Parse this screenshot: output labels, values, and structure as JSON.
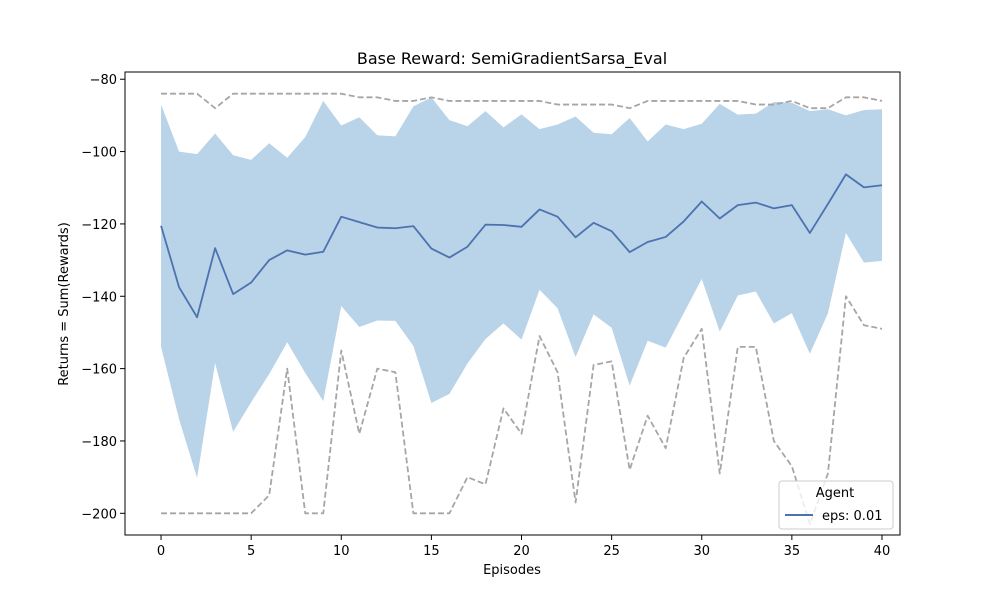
{
  "chart_data": {
    "type": "line",
    "title": "Base Reward: SemiGradientSarsa_Eval",
    "xlabel": "Episodes",
    "ylabel": "Returns = Sum(Rewards)",
    "xlim": [
      -2,
      41
    ],
    "ylim": [
      -206,
      -78
    ],
    "xticks": [
      0,
      5,
      10,
      15,
      20,
      25,
      30,
      35,
      40
    ],
    "yticks": [
      -200,
      -180,
      -160,
      -140,
      -120,
      -100,
      -80
    ],
    "grid": false,
    "legend": {
      "title": "Agent",
      "placement": "bottom-right"
    },
    "x": [
      0,
      1,
      2,
      3,
      4,
      5,
      6,
      7,
      8,
      9,
      10,
      11,
      12,
      13,
      14,
      15,
      16,
      17,
      18,
      19,
      20,
      21,
      22,
      23,
      24,
      25,
      26,
      27,
      28,
      29,
      30,
      31,
      32,
      33,
      34,
      35,
      36,
      37,
      38,
      39,
      40
    ],
    "series": [
      {
        "name": "eps: 0.01",
        "color": "#4c72b0",
        "mean": [
          -120.5,
          -137.5,
          -145.8,
          -126.7,
          -139.4,
          -136.2,
          -130,
          -127.3,
          -128.5,
          -127.7,
          -118,
          -119.5,
          -121,
          -121.2,
          -120.6,
          -126.8,
          -129.3,
          -126.3,
          -120.2,
          -120.3,
          -120.8,
          -116,
          -118,
          -123.7,
          -119.7,
          -122,
          -127.8,
          -125,
          -123.6,
          -119.3,
          -113.8,
          -118.5,
          -114.8,
          -114.1,
          -115.7,
          -114.8,
          -122.5,
          -114.5,
          -106.3,
          -109.9,
          -109.3
        ],
        "band_upper": [
          -87,
          -100,
          -100.7,
          -95,
          -101,
          -102.3,
          -97.7,
          -101.7,
          -96,
          -86,
          -92.8,
          -90.5,
          -95.5,
          -95.8,
          -87.5,
          -85,
          -91.3,
          -93,
          -88.8,
          -93.3,
          -89.7,
          -93.8,
          -92.5,
          -90.3,
          -94.8,
          -95.2,
          -90.7,
          -97.2,
          -92.5,
          -93.8,
          -92.3,
          -86.8,
          -89.8,
          -89.5,
          -86.3,
          -86.5,
          -88.8,
          -88.3,
          -90,
          -88.5,
          -88.3
        ],
        "band_lower": [
          -154,
          -174,
          -190.2,
          -158.5,
          -177.5,
          -169.3,
          -161.5,
          -152.7,
          -161.2,
          -169,
          -142.7,
          -148.5,
          -146.7,
          -146.8,
          -153.7,
          -169.5,
          -167,
          -158.6,
          -151.8,
          -147.5,
          -152,
          -138.2,
          -143.3,
          -156.8,
          -145,
          -148.7,
          -164.7,
          -152.3,
          -154.2,
          -144.7,
          -135.2,
          -149.8,
          -139.8,
          -138.7,
          -147.5,
          -144.7,
          -155.9,
          -144.7,
          -122.5,
          -130.7,
          -130.2
        ],
        "max": [
          -84,
          -84,
          -84,
          -88,
          -84,
          -84,
          -84,
          -84,
          -84,
          -84,
          -84,
          -85,
          -85,
          -86,
          -86,
          -85,
          -86,
          -86,
          -86,
          -86,
          -86,
          -86,
          -87,
          -87,
          -87,
          -87,
          -88,
          -86,
          -86,
          -86,
          -86,
          -86,
          -86,
          -87,
          -87,
          -86,
          -88,
          -88,
          -85,
          -85,
          -86
        ],
        "min": [
          -200,
          -200,
          -200,
          -200,
          -200,
          -200,
          -195,
          -160,
          -200,
          -200,
          -155,
          -178,
          -160,
          -161,
          -200,
          -200,
          -200,
          -190,
          -192,
          -171,
          -178,
          -151,
          -161,
          -197,
          -159,
          -158,
          -188,
          -173,
          -182,
          -157,
          -149,
          -189,
          -154,
          -154,
          -180,
          -187,
          -203,
          -189,
          -140,
          -148,
          -149
        ]
      }
    ],
    "colors": {
      "band": "#b9d3e8",
      "minmax": "#a6a6a6",
      "line": "#4c72b0"
    }
  }
}
